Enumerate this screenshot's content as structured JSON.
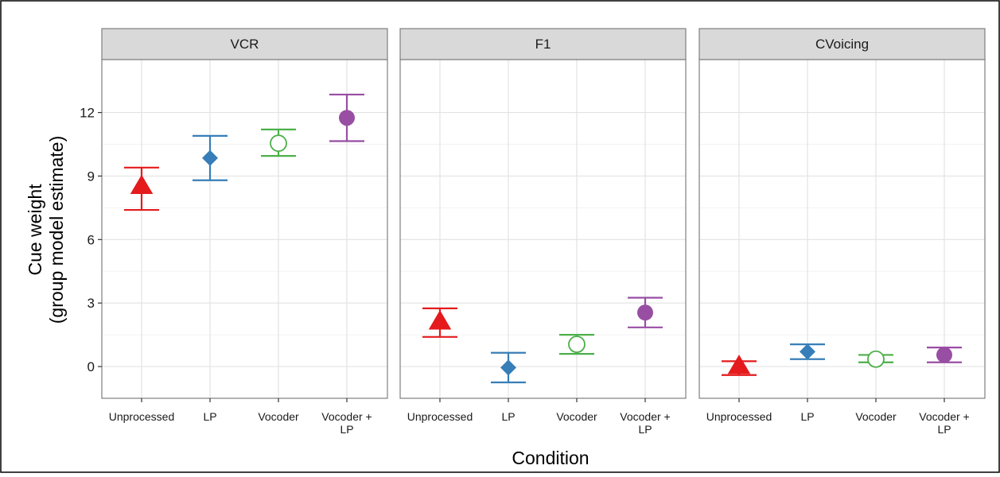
{
  "chart_data": {
    "type": "scatter",
    "facet_layout": "panels-in-a-row",
    "panels": [
      "VCR",
      "F1",
      "CVoicing"
    ],
    "categories": [
      "Unprocessed",
      "LP",
      "Vocoder",
      "Vocoder + LP"
    ],
    "ylabel_line1": "Cue weight",
    "ylabel_line2": "(group model estimate)",
    "xlabel": "Condition",
    "ylim": [
      -1.5,
      14.5
    ],
    "yticks": [
      "0",
      "3",
      "6",
      "9",
      "12"
    ],
    "grid": true,
    "legend": "none",
    "series": [
      {
        "marker": "triangle",
        "color": "#e41a1c",
        "values": [
          {
            "panel": "VCR",
            "mean": 8.5,
            "low": 7.4,
            "high": 9.4
          },
          {
            "panel": "F1",
            "mean": 2.1,
            "low": 1.4,
            "high": 2.75
          },
          {
            "panel": "CVoicing",
            "mean": 0.0,
            "low": -0.4,
            "high": 0.25
          }
        ]
      },
      {
        "marker": "diamond",
        "color": "#377eb8",
        "values": [
          {
            "panel": "VCR",
            "mean": 9.85,
            "low": 8.8,
            "high": 10.9
          },
          {
            "panel": "F1",
            "mean": -0.05,
            "low": -0.75,
            "high": 0.65
          },
          {
            "panel": "CVoicing",
            "mean": 0.7,
            "low": 0.35,
            "high": 1.05
          }
        ]
      },
      {
        "marker": "open-circle",
        "color": "#4daf4a",
        "values": [
          {
            "panel": "VCR",
            "mean": 10.55,
            "low": 9.95,
            "high": 11.2
          },
          {
            "panel": "F1",
            "mean": 1.05,
            "low": 0.6,
            "high": 1.5
          },
          {
            "panel": "CVoicing",
            "mean": 0.35,
            "low": 0.2,
            "high": 0.55
          }
        ]
      },
      {
        "marker": "circle",
        "color": "#984ea3",
        "values": [
          {
            "panel": "VCR",
            "mean": 11.75,
            "low": 10.65,
            "high": 12.85
          },
          {
            "panel": "F1",
            "mean": 2.55,
            "low": 1.85,
            "high": 3.25
          },
          {
            "panel": "CVoicing",
            "mean": 0.55,
            "low": 0.2,
            "high": 0.9
          }
        ]
      }
    ]
  }
}
